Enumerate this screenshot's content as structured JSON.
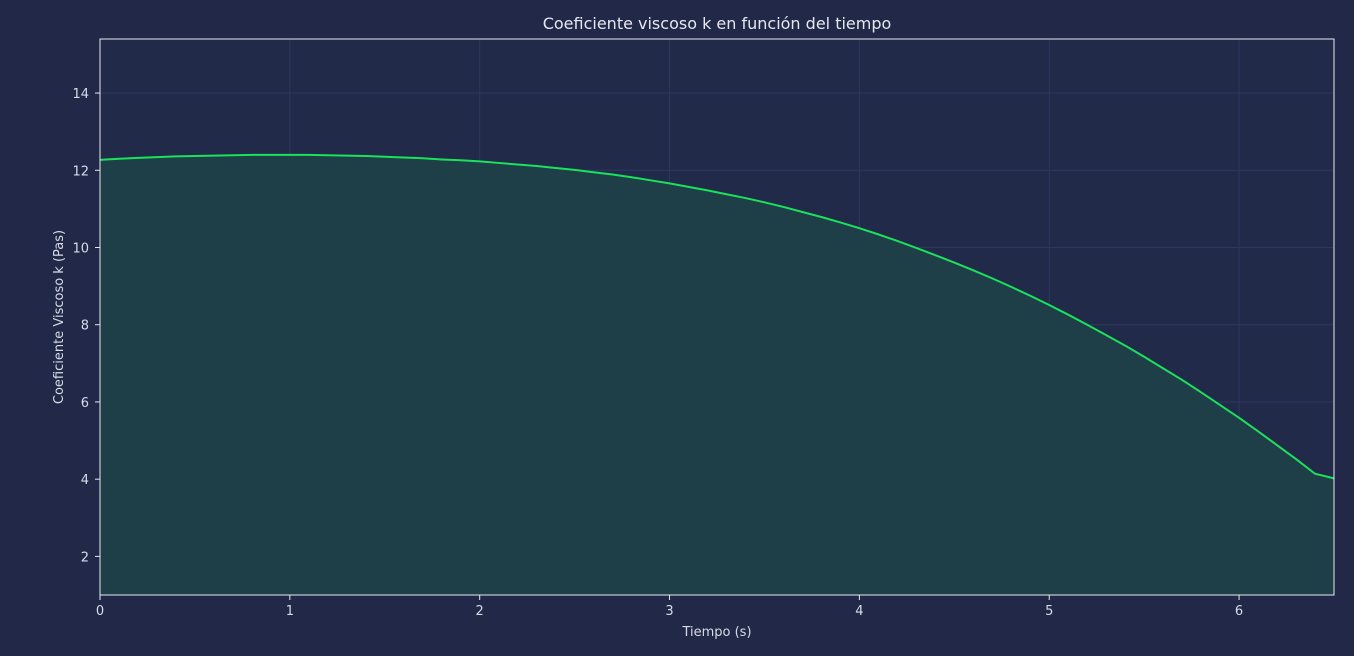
{
  "colors": {
    "background": "#212848",
    "plot_background": "#222a4a",
    "line": "#19e35a",
    "fill": "#1e3e48",
    "grid": "#2e3760",
    "axis": "#e6e8ef",
    "text": "#d8dbe6"
  },
  "chart_data": {
    "type": "area",
    "title": "Coeficiente viscoso k en función del tiempo",
    "xlabel": "Tiempo (s)",
    "ylabel": "Coeficiente Viscoso k (Pas)",
    "xlim": [
      0,
      6.5
    ],
    "ylim": [
      1,
      15.4
    ],
    "xticks": [
      0,
      1,
      2,
      3,
      4,
      5,
      6
    ],
    "yticks": [
      2,
      4,
      6,
      8,
      10,
      12,
      14
    ],
    "grid": true,
    "legend": "none",
    "series": [
      {
        "x": [
          0,
          0.1,
          0.2,
          0.3,
          0.4,
          0.5,
          0.6,
          0.7,
          0.8,
          0.9,
          1.0,
          1.1,
          1.2,
          1.3,
          1.4,
          1.5,
          1.6,
          1.7,
          1.8,
          1.9,
          2.0,
          2.1,
          2.2,
          2.3,
          2.4,
          2.5,
          2.6,
          2.7,
          2.8,
          2.9,
          3.0,
          3.1,
          3.2,
          3.3,
          3.4,
          3.5,
          3.6,
          3.7,
          3.8,
          3.9,
          4.0,
          4.1,
          4.2,
          4.3,
          4.4,
          4.5,
          4.6,
          4.7,
          4.8,
          4.9,
          5.0,
          5.1,
          5.2,
          5.3,
          5.4,
          5.5,
          5.6,
          5.7,
          5.8,
          5.9,
          6.0,
          6.1,
          6.2,
          6.3,
          6.4,
          6.5
        ],
        "y": [
          12.27,
          12.3,
          12.32,
          12.34,
          12.36,
          12.37,
          12.38,
          12.39,
          12.4,
          12.4,
          12.4,
          12.4,
          12.39,
          12.38,
          12.37,
          12.35,
          12.33,
          12.31,
          12.28,
          12.26,
          12.23,
          12.19,
          12.15,
          12.11,
          12.06,
          12.01,
          11.95,
          11.89,
          11.82,
          11.74,
          11.66,
          11.57,
          11.48,
          11.38,
          11.28,
          11.17,
          11.05,
          10.92,
          10.79,
          10.65,
          10.5,
          10.34,
          10.17,
          9.99,
          9.8,
          9.61,
          9.41,
          9.2,
          8.98,
          8.75,
          8.51,
          8.26,
          8.0,
          7.73,
          7.46,
          7.17,
          6.87,
          6.57,
          6.25,
          5.92,
          5.59,
          5.24,
          4.88,
          4.52,
          4.14,
          4.02
        ]
      }
    ]
  }
}
